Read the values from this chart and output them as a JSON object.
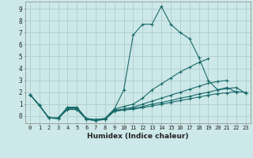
{
  "xlabel": "Humidex (Indice chaleur)",
  "bg_color": "#cde8e8",
  "grid_color": "#b0cccc",
  "line_color": "#1a6b6b",
  "xlim": [
    -0.5,
    23.5
  ],
  "ylim": [
    -0.6,
    9.6
  ],
  "xticks": [
    0,
    1,
    2,
    3,
    4,
    5,
    6,
    7,
    8,
    9,
    10,
    11,
    12,
    13,
    14,
    15,
    16,
    17,
    18,
    19,
    20,
    21,
    22,
    23
  ],
  "yticks": [
    0,
    1,
    2,
    3,
    4,
    5,
    6,
    7,
    8,
    9
  ],
  "lines": [
    {
      "x": [
        0,
        1,
        2,
        3,
        4,
        5,
        6,
        7,
        8,
        9,
        10,
        11,
        12,
        13,
        14,
        15,
        16,
        17,
        18,
        19,
        20,
        21,
        22
      ],
      "y": [
        1.8,
        0.9,
        -0.15,
        -0.15,
        0.75,
        0.75,
        -0.2,
        -0.3,
        -0.2,
        0.6,
        2.2,
        6.8,
        7.7,
        7.7,
        9.2,
        7.7,
        7.0,
        6.5,
        4.9,
        3.0,
        2.2,
        2.4,
        2.0
      ]
    },
    {
      "x": [
        0,
        1,
        2,
        3,
        4,
        5,
        6,
        7,
        8,
        9,
        10,
        11,
        12,
        13,
        14,
        15,
        16,
        17,
        18,
        19
      ],
      "y": [
        1.8,
        0.9,
        -0.15,
        -0.15,
        0.7,
        0.7,
        -0.2,
        -0.3,
        -0.2,
        0.6,
        0.8,
        1.0,
        1.5,
        2.2,
        2.7,
        3.2,
        3.7,
        4.1,
        4.5,
        4.8
      ]
    },
    {
      "x": [
        0,
        1,
        2,
        3,
        4,
        5,
        6,
        7,
        8,
        9,
        10,
        11,
        12,
        13,
        14,
        15,
        16,
        17,
        18,
        19,
        20,
        21
      ],
      "y": [
        1.8,
        0.9,
        -0.15,
        -0.2,
        0.65,
        0.65,
        -0.25,
        -0.35,
        -0.25,
        0.5,
        0.6,
        0.75,
        1.0,
        1.25,
        1.5,
        1.75,
        2.0,
        2.25,
        2.5,
        2.75,
        2.9,
        3.0
      ]
    },
    {
      "x": [
        0,
        1,
        2,
        3,
        4,
        5,
        6,
        7,
        8,
        9,
        10,
        11,
        12,
        13,
        14,
        15,
        16,
        17,
        18,
        19,
        20,
        21,
        22,
        23
      ],
      "y": [
        1.8,
        0.9,
        -0.15,
        -0.2,
        0.6,
        0.6,
        -0.25,
        -0.35,
        -0.25,
        0.45,
        0.55,
        0.65,
        0.8,
        1.0,
        1.15,
        1.3,
        1.5,
        1.65,
        1.85,
        2.0,
        2.2,
        2.3,
        2.4,
        1.9
      ]
    },
    {
      "x": [
        0,
        1,
        2,
        3,
        4,
        5,
        6,
        7,
        8,
        9,
        10,
        11,
        12,
        13,
        14,
        15,
        16,
        17,
        18,
        19,
        20,
        21,
        22,
        23
      ],
      "y": [
        1.8,
        0.9,
        -0.15,
        -0.2,
        0.55,
        0.55,
        -0.28,
        -0.38,
        -0.28,
        0.4,
        0.5,
        0.58,
        0.7,
        0.85,
        1.0,
        1.15,
        1.3,
        1.45,
        1.6,
        1.75,
        1.88,
        1.95,
        2.05,
        2.0
      ]
    }
  ]
}
